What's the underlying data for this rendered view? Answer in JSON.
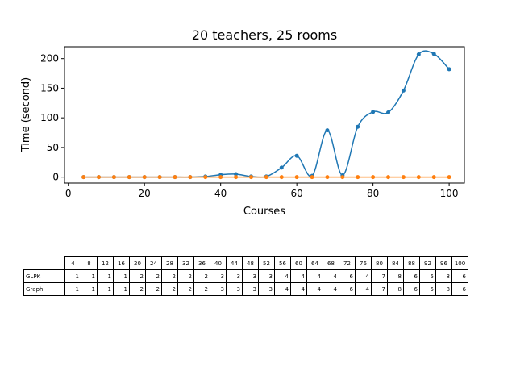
{
  "chart_data": {
    "type": "line",
    "title": "20 teachers, 25 rooms",
    "xlabel": "Courses",
    "ylabel": "Time (second)",
    "xlim": [
      -1,
      104
    ],
    "ylim": [
      -10,
      220
    ],
    "xticks": [
      0,
      20,
      40,
      60,
      80,
      100
    ],
    "yticks": [
      0,
      50,
      100,
      150,
      200
    ],
    "series": [
      {
        "color": "#1f77b4",
        "x": [
          4,
          8,
          12,
          16,
          20,
          24,
          28,
          32,
          36,
          40,
          44,
          48,
          52,
          56,
          60,
          64,
          68,
          72,
          76,
          80,
          84,
          88,
          92,
          96,
          100
        ],
        "y": [
          0,
          0,
          0,
          0,
          0,
          0,
          0,
          0,
          1,
          4,
          5,
          1,
          1,
          16,
          36,
          2,
          79,
          3,
          85,
          110,
          109,
          146,
          207,
          208,
          182
        ]
      },
      {
        "color": "#ff7f0e",
        "x": [
          4,
          8,
          12,
          16,
          20,
          24,
          28,
          32,
          36,
          40,
          44,
          48,
          52,
          56,
          60,
          64,
          68,
          72,
          76,
          80,
          84,
          88,
          92,
          96,
          100
        ],
        "y": [
          0,
          0,
          0,
          0,
          0,
          0,
          0,
          0,
          0,
          0,
          0,
          0,
          0,
          0,
          0,
          0,
          0,
          0,
          0,
          0,
          0,
          0,
          0,
          0,
          0
        ]
      }
    ]
  },
  "table": {
    "columns": [
      "4",
      "8",
      "12",
      "16",
      "20",
      "24",
      "28",
      "32",
      "36",
      "40",
      "44",
      "48",
      "52",
      "56",
      "60",
      "64",
      "68",
      "72",
      "76",
      "80",
      "84",
      "88",
      "92",
      "96",
      "100"
    ],
    "rows": [
      {
        "label": "GLPK",
        "values": [
          "1",
          "1",
          "1",
          "1",
          "2",
          "2",
          "2",
          "2",
          "2",
          "3",
          "3",
          "3",
          "3",
          "4",
          "4",
          "4",
          "4",
          "6",
          "4",
          "7",
          "8",
          "6",
          "5",
          "8",
          "6"
        ]
      },
      {
        "label": "Graph",
        "values": [
          "1",
          "1",
          "1",
          "1",
          "2",
          "2",
          "2",
          "2",
          "2",
          "3",
          "3",
          "3",
          "3",
          "4",
          "4",
          "4",
          "4",
          "6",
          "4",
          "7",
          "8",
          "6",
          "5",
          "8",
          "6"
        ]
      }
    ]
  }
}
